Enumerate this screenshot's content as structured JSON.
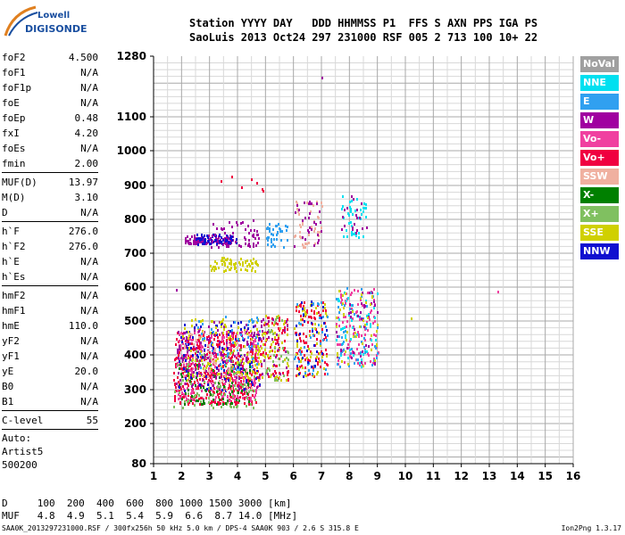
{
  "logo": {
    "line1": "Lowell",
    "line2": "DIGISONDE"
  },
  "header": {
    "line1": "Station YYYY DAY   DDD HHMMSS P1  FFS S AXN PPS IGA PS",
    "line2": "SaoLuis 2013 Oct24 297 231000 RSF 005 2 713 100 10+ 22"
  },
  "params_group1": [
    {
      "name": "foF2",
      "value": "4.500"
    },
    {
      "name": "foF1",
      "value": "N/A"
    },
    {
      "name": "foF1p",
      "value": "N/A"
    },
    {
      "name": "foE",
      "value": "N/A"
    },
    {
      "name": "foEp",
      "value": "0.48"
    },
    {
      "name": "fxI",
      "value": "4.20"
    },
    {
      "name": "foEs",
      "value": "N/A"
    },
    {
      "name": "fmin",
      "value": "2.00"
    }
  ],
  "params_group2": [
    {
      "name": "MUF(D)",
      "value": "13.97"
    },
    {
      "name": "M(D)",
      "value": "3.10"
    },
    {
      "name": "D",
      "value": "N/A"
    }
  ],
  "params_group3": [
    {
      "name": "h`F",
      "value": "276.0"
    },
    {
      "name": "h`F2",
      "value": "276.0"
    },
    {
      "name": "h`E",
      "value": "N/A"
    },
    {
      "name": "h`Es",
      "value": "N/A"
    }
  ],
  "params_group4": [
    {
      "name": "hmF2",
      "value": "N/A"
    },
    {
      "name": "hmF1",
      "value": "N/A"
    },
    {
      "name": "hmE",
      "value": "110.0"
    },
    {
      "name": "yF2",
      "value": "N/A"
    },
    {
      "name": "yF1",
      "value": "N/A"
    },
    {
      "name": "yE",
      "value": "20.0"
    },
    {
      "name": "B0",
      "value": "N/A"
    },
    {
      "name": "B1",
      "value": "N/A"
    }
  ],
  "params_group5": [
    {
      "name": "C-level",
      "value": "55"
    }
  ],
  "auto_lines": [
    "Auto:",
    "Artist5",
    "500200"
  ],
  "legend": [
    {
      "label": "NoVal",
      "color": "#a0a0a0"
    },
    {
      "label": "NNE",
      "color": "#00e0f0"
    },
    {
      "label": "E",
      "color": "#30a0f0"
    },
    {
      "label": "W",
      "color": "#a000a0"
    },
    {
      "label": "Vo-",
      "color": "#f040a0"
    },
    {
      "label": "Vo+",
      "color": "#f00040"
    },
    {
      "label": "SSW",
      "color": "#f0b0a0"
    },
    {
      "label": "X-",
      "color": "#008000"
    },
    {
      "label": "X+",
      "color": "#80c060"
    },
    {
      "label": "SSE",
      "color": "#d0d000"
    },
    {
      "label": "NNW",
      "color": "#1010d0"
    }
  ],
  "footer": {
    "line1": "D     100  200  400  600  800 1000 1500 3000 [km]",
    "line2": "MUF   4.8  4.9  5.1  5.4  5.9  6.6  8.7 14.0 [MHz]",
    "bottom": "SAA0K_2013297231000.RSF / 300fx256h 50 kHz 5.0 km / DPS-4 SAA0K 903 / 2.6 S 315.8 E",
    "version": "Ion2Png 1.3.17"
  },
  "chart_data": {
    "type": "scatter",
    "x_ticks": [
      1,
      2,
      3,
      4,
      5,
      6,
      7,
      8,
      9,
      10,
      11,
      12,
      13,
      14,
      15,
      16
    ],
    "y_ticks": [
      80,
      200,
      300,
      400,
      500,
      600,
      700,
      800,
      900,
      1000,
      1100,
      1280
    ],
    "xlim": [
      1,
      16
    ],
    "y_scale": "nonlinear",
    "grid": true,
    "clusters": [
      {
        "series": "Vo+",
        "x_range": [
          1.7,
          4.7
        ],
        "y_range": [
          260,
          470
        ],
        "count": 420
      },
      {
        "series": "Vo-",
        "x_range": [
          1.8,
          4.8
        ],
        "y_range": [
          270,
          480
        ],
        "count": 260
      },
      {
        "series": "X+",
        "x_range": [
          1.7,
          4.6
        ],
        "y_range": [
          250,
          420
        ],
        "count": 120
      },
      {
        "series": "X-",
        "x_range": [
          1.8,
          4.5
        ],
        "y_range": [
          260,
          380
        ],
        "count": 80
      },
      {
        "series": "W",
        "x_range": [
          1.8,
          4.8
        ],
        "y_range": [
          300,
          500
        ],
        "count": 160
      },
      {
        "series": "NNW",
        "x_range": [
          1.9,
          4.8
        ],
        "y_range": [
          300,
          500
        ],
        "count": 90
      },
      {
        "series": "SSE",
        "x_range": [
          2.0,
          4.8
        ],
        "y_range": [
          330,
          510
        ],
        "count": 120
      },
      {
        "series": "E",
        "x_range": [
          2.5,
          4.8
        ],
        "y_range": [
          350,
          520
        ],
        "count": 50
      },
      {
        "series": "SSW",
        "x_range": [
          2.0,
          4.5
        ],
        "y_range": [
          300,
          480
        ],
        "count": 50
      },
      {
        "series": "Vo+",
        "x_range": [
          4.8,
          5.8
        ],
        "y_range": [
          330,
          520
        ],
        "count": 70
      },
      {
        "series": "SSE",
        "x_range": [
          4.8,
          5.8
        ],
        "y_range": [
          330,
          520
        ],
        "count": 50
      },
      {
        "series": "X+",
        "x_range": [
          4.8,
          5.8
        ],
        "y_range": [
          330,
          520
        ],
        "count": 30
      },
      {
        "series": "W",
        "x_range": [
          4.8,
          5.8
        ],
        "y_range": [
          330,
          520
        ],
        "count": 30
      },
      {
        "series": "Vo+",
        "x_range": [
          6.0,
          7.2
        ],
        "y_range": [
          340,
          560
        ],
        "count": 100
      },
      {
        "series": "SSE",
        "x_range": [
          6.0,
          7.2
        ],
        "y_range": [
          340,
          560
        ],
        "count": 60
      },
      {
        "series": "E",
        "x_range": [
          6.0,
          7.2
        ],
        "y_range": [
          340,
          560
        ],
        "count": 40
      },
      {
        "series": "NNW",
        "x_range": [
          6.0,
          7.2
        ],
        "y_range": [
          340,
          560
        ],
        "count": 30
      },
      {
        "series": "Vo-",
        "x_range": [
          7.5,
          9.0
        ],
        "y_range": [
          370,
          600
        ],
        "count": 100
      },
      {
        "series": "NNE",
        "x_range": [
          7.5,
          9.0
        ],
        "y_range": [
          370,
          600
        ],
        "count": 50
      },
      {
        "series": "E",
        "x_range": [
          7.5,
          9.0
        ],
        "y_range": [
          370,
          600
        ],
        "count": 50
      },
      {
        "series": "W",
        "x_range": [
          7.5,
          9.0
        ],
        "y_range": [
          370,
          600
        ],
        "count": 40
      },
      {
        "series": "SSE",
        "x_range": [
          7.5,
          9.0
        ],
        "y_range": [
          370,
          600
        ],
        "count": 40
      },
      {
        "series": "W",
        "x_range": [
          2.1,
          3.8
        ],
        "y_range": [
          730,
          755
        ],
        "count": 110
      },
      {
        "series": "NNW",
        "x_range": [
          2.5,
          4.0
        ],
        "y_range": [
          730,
          760
        ],
        "count": 60
      },
      {
        "series": "SSE",
        "x_range": [
          3.0,
          4.7
        ],
        "y_range": [
          650,
          690
        ],
        "count": 70
      },
      {
        "series": "W",
        "x_range": [
          3.0,
          4.8
        ],
        "y_range": [
          720,
          800
        ],
        "count": 50
      },
      {
        "series": "E",
        "x_range": [
          5.0,
          5.8
        ],
        "y_range": [
          720,
          790
        ],
        "count": 40
      },
      {
        "series": "SSW",
        "x_range": [
          6.0,
          7.0
        ],
        "y_range": [
          720,
          860
        ],
        "count": 40
      },
      {
        "series": "W",
        "x_range": [
          6.0,
          7.0
        ],
        "y_range": [
          720,
          860
        ],
        "count": 30
      },
      {
        "series": "NNE",
        "x_range": [
          7.7,
          8.6
        ],
        "y_range": [
          750,
          870
        ],
        "count": 40
      },
      {
        "series": "W",
        "x_range": [
          7.7,
          8.6
        ],
        "y_range": [
          750,
          870
        ],
        "count": 20
      },
      {
        "series": "Vo+",
        "x_range": [
          2.5,
          5.0
        ],
        "y_range": [
          880,
          950
        ],
        "count": 8
      }
    ],
    "isolated_points": [
      {
        "series": "W",
        "x": 7.0,
        "y": 1220
      },
      {
        "series": "Vo-",
        "x": 13.3,
        "y": 590
      },
      {
        "series": "SSE",
        "x": 10.2,
        "y": 510
      },
      {
        "series": "W",
        "x": 1.8,
        "y": 595
      }
    ]
  }
}
